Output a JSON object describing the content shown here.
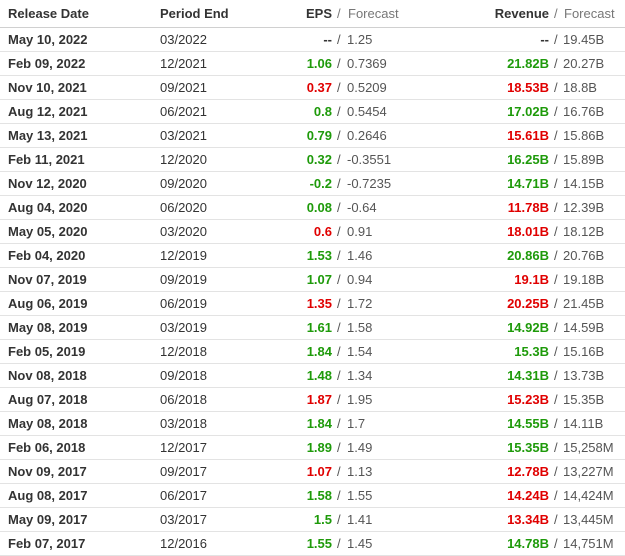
{
  "separator": "/",
  "header": {
    "release_date": "Release Date",
    "period_end": "Period End",
    "eps": "EPS",
    "eps_forecast": "Forecast",
    "revenue": "Revenue",
    "revenue_forecast": "Forecast"
  },
  "rows": [
    {
      "release_date": "May 10, 2022",
      "period_end": "03/2022",
      "eps": "--",
      "eps_color": "#333333",
      "eps_forecast": "1.25",
      "revenue": "--",
      "revenue_color": "#333333",
      "revenue_forecast": "19.45B"
    },
    {
      "release_date": "Feb 09, 2022",
      "period_end": "12/2021",
      "eps": "1.06",
      "eps_color": "#1e9a0a",
      "eps_forecast": "0.7369",
      "revenue": "21.82B",
      "revenue_color": "#1e9a0a",
      "revenue_forecast": "20.27B"
    },
    {
      "release_date": "Nov 10, 2021",
      "period_end": "09/2021",
      "eps": "0.37",
      "eps_color": "#e00000",
      "eps_forecast": "0.5209",
      "revenue": "18.53B",
      "revenue_color": "#e00000",
      "revenue_forecast": "18.8B"
    },
    {
      "release_date": "Aug 12, 2021",
      "period_end": "06/2021",
      "eps": "0.8",
      "eps_color": "#1e9a0a",
      "eps_forecast": "0.5454",
      "revenue": "17.02B",
      "revenue_color": "#1e9a0a",
      "revenue_forecast": "16.76B"
    },
    {
      "release_date": "May 13, 2021",
      "period_end": "03/2021",
      "eps": "0.79",
      "eps_color": "#1e9a0a",
      "eps_forecast": "0.2646",
      "revenue": "15.61B",
      "revenue_color": "#e00000",
      "revenue_forecast": "15.86B"
    },
    {
      "release_date": "Feb 11, 2021",
      "period_end": "12/2020",
      "eps": "0.32",
      "eps_color": "#1e9a0a",
      "eps_forecast": "-0.3551",
      "revenue": "16.25B",
      "revenue_color": "#1e9a0a",
      "revenue_forecast": "15.89B"
    },
    {
      "release_date": "Nov 12, 2020",
      "period_end": "09/2020",
      "eps": "-0.2",
      "eps_color": "#1e9a0a",
      "eps_forecast": "-0.7235",
      "revenue": "14.71B",
      "revenue_color": "#1e9a0a",
      "revenue_forecast": "14.15B"
    },
    {
      "release_date": "Aug 04, 2020",
      "period_end": "06/2020",
      "eps": "0.08",
      "eps_color": "#1e9a0a",
      "eps_forecast": "-0.64",
      "revenue": "11.78B",
      "revenue_color": "#e00000",
      "revenue_forecast": "12.39B"
    },
    {
      "release_date": "May 05, 2020",
      "period_end": "03/2020",
      "eps": "0.6",
      "eps_color": "#e00000",
      "eps_forecast": "0.91",
      "revenue": "18.01B",
      "revenue_color": "#e00000",
      "revenue_forecast": "18.12B"
    },
    {
      "release_date": "Feb 04, 2020",
      "period_end": "12/2019",
      "eps": "1.53",
      "eps_color": "#1e9a0a",
      "eps_forecast": "1.46",
      "revenue": "20.86B",
      "revenue_color": "#1e9a0a",
      "revenue_forecast": "20.76B"
    },
    {
      "release_date": "Nov 07, 2019",
      "period_end": "09/2019",
      "eps": "1.07",
      "eps_color": "#1e9a0a",
      "eps_forecast": "0.94",
      "revenue": "19.1B",
      "revenue_color": "#e00000",
      "revenue_forecast": "19.18B"
    },
    {
      "release_date": "Aug 06, 2019",
      "period_end": "06/2019",
      "eps": "1.35",
      "eps_color": "#e00000",
      "eps_forecast": "1.72",
      "revenue": "20.25B",
      "revenue_color": "#e00000",
      "revenue_forecast": "21.45B"
    },
    {
      "release_date": "May 08, 2019",
      "period_end": "03/2019",
      "eps": "1.61",
      "eps_color": "#1e9a0a",
      "eps_forecast": "1.58",
      "revenue": "14.92B",
      "revenue_color": "#1e9a0a",
      "revenue_forecast": "14.59B"
    },
    {
      "release_date": "Feb 05, 2019",
      "period_end": "12/2018",
      "eps": "1.84",
      "eps_color": "#1e9a0a",
      "eps_forecast": "1.54",
      "revenue": "15.3B",
      "revenue_color": "#1e9a0a",
      "revenue_forecast": "15.16B"
    },
    {
      "release_date": "Nov 08, 2018",
      "period_end": "09/2018",
      "eps": "1.48",
      "eps_color": "#1e9a0a",
      "eps_forecast": "1.34",
      "revenue": "14.31B",
      "revenue_color": "#1e9a0a",
      "revenue_forecast": "13.73B"
    },
    {
      "release_date": "Aug 07, 2018",
      "period_end": "06/2018",
      "eps": "1.87",
      "eps_color": "#e00000",
      "eps_forecast": "1.95",
      "revenue": "15.23B",
      "revenue_color": "#e00000",
      "revenue_forecast": "15.35B"
    },
    {
      "release_date": "May 08, 2018",
      "period_end": "03/2018",
      "eps": "1.84",
      "eps_color": "#1e9a0a",
      "eps_forecast": "1.7",
      "revenue": "14.55B",
      "revenue_color": "#1e9a0a",
      "revenue_forecast": "14.11B"
    },
    {
      "release_date": "Feb 06, 2018",
      "period_end": "12/2017",
      "eps": "1.89",
      "eps_color": "#1e9a0a",
      "eps_forecast": "1.49",
      "revenue": "15.35B",
      "revenue_color": "#1e9a0a",
      "revenue_forecast": "15,258M"
    },
    {
      "release_date": "Nov 09, 2017",
      "period_end": "09/2017",
      "eps": "1.07",
      "eps_color": "#e00000",
      "eps_forecast": "1.13",
      "revenue": "12.78B",
      "revenue_color": "#e00000",
      "revenue_forecast": "13,227M"
    },
    {
      "release_date": "Aug 08, 2017",
      "period_end": "06/2017",
      "eps": "1.58",
      "eps_color": "#1e9a0a",
      "eps_forecast": "1.55",
      "revenue": "14.24B",
      "revenue_color": "#e00000",
      "revenue_forecast": "14,424M"
    },
    {
      "release_date": "May 09, 2017",
      "period_end": "03/2017",
      "eps": "1.5",
      "eps_color": "#1e9a0a",
      "eps_forecast": "1.41",
      "revenue": "13.34B",
      "revenue_color": "#e00000",
      "revenue_forecast": "13,445M"
    },
    {
      "release_date": "Feb 07, 2017",
      "period_end": "12/2016",
      "eps": "1.55",
      "eps_color": "#1e9a0a",
      "eps_forecast": "1.45",
      "revenue": "14.78B",
      "revenue_color": "#1e9a0a",
      "revenue_forecast": "14,751M"
    }
  ]
}
